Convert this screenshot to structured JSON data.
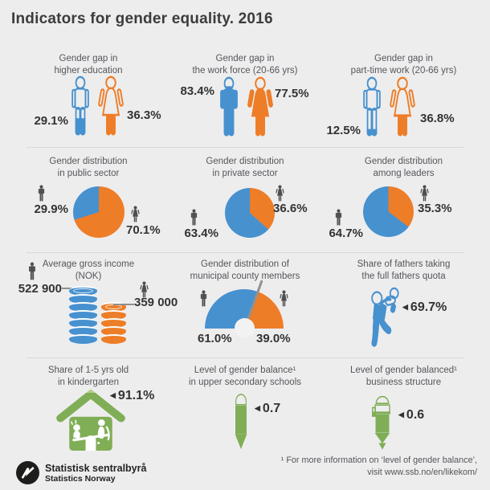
{
  "title": "Indicators for gender equality. 2016",
  "ui": {
    "arrow": "◀"
  },
  "colors": {
    "male_blue": "#4791cf",
    "female_orange": "#ee7d28",
    "green": "#80ae56",
    "green_light": "#b5cc90",
    "icon_gray": "#4d4e50",
    "needle_gray": "#8f9193",
    "background": "#ededee"
  },
  "chart_data": [
    {
      "id": "gender-gap-higher-education",
      "type": "pictogram-fill",
      "title": "Gender gap in\nhigher education",
      "male": {
        "value": 29.1,
        "label": "29.1%"
      },
      "female": {
        "value": 36.3,
        "label": "36.3%"
      }
    },
    {
      "id": "gender-gap-work-force",
      "type": "pictogram-fill",
      "title": "Gender gap in\nthe work force (20-66 yrs)",
      "male": {
        "value": 83.4,
        "label": "83.4%"
      },
      "female": {
        "value": 77.5,
        "label": "77.5%"
      }
    },
    {
      "id": "gender-gap-part-time-work",
      "type": "pictogram-fill",
      "title": "Gender gap in\npart-time work (20-66 yrs)",
      "male": {
        "value": 12.5,
        "label": "12.5%"
      },
      "female": {
        "value": 36.8,
        "label": "36.8%"
      }
    },
    {
      "id": "gender-distribution-public-sector",
      "type": "pie",
      "title": "Gender distribution\nin public sector",
      "male": {
        "value": 29.9,
        "label": "29.9%"
      },
      "female": {
        "value": 70.1,
        "label": "70.1%"
      }
    },
    {
      "id": "gender-distribution-private-sector",
      "type": "pie",
      "title": "Gender distribution\nin private sector",
      "male": {
        "value": 63.4,
        "label": "63.4%"
      },
      "female": {
        "value": 36.6,
        "label": "36.6%"
      }
    },
    {
      "id": "gender-distribution-leaders",
      "type": "pie",
      "title": "Gender distribution\namong leaders",
      "male": {
        "value": 64.7,
        "label": "64.7%"
      },
      "female": {
        "value": 35.3,
        "label": "35.3%"
      }
    },
    {
      "id": "average-gross-income",
      "type": "coin-stacks",
      "title": "Average gross income\n(NOK)",
      "unit": "NOK",
      "male": {
        "value": 522900,
        "label": "522 900",
        "coins": 7
      },
      "female": {
        "value": 359000,
        "label": "359 000",
        "coins": 5
      }
    },
    {
      "id": "municipal-county-members",
      "type": "gauge",
      "title": "Gender distribution of\nmunicipal county members",
      "male": {
        "value": 61.0,
        "label": "61.0%"
      },
      "female": {
        "value": 39.0,
        "label": "39.0%"
      }
    },
    {
      "id": "fathers-quota",
      "type": "pictogram-fill",
      "title": "Share of fathers taking\nthe full fathers quota",
      "value": 69.7,
      "max": 100,
      "label": "69.7%"
    },
    {
      "id": "kindergarten",
      "type": "pictogram-fill",
      "title": "Share of 1-5 yrs old\nin kindergarten",
      "value": 91.1,
      "max": 100,
      "label": "91.1%"
    },
    {
      "id": "gender-balance-schools",
      "type": "pictogram-fill",
      "title": "Level of gender balance¹\nin upper secondary schools",
      "value": 0.7,
      "max": 1,
      "label": "0.7"
    },
    {
      "id": "gender-balance-business",
      "type": "pictogram-fill",
      "title": "Level of gender balanced¹\nbusiness structure",
      "value": 0.6,
      "max": 1,
      "label": "0.6"
    }
  ],
  "footer": {
    "org_name": "Statistisk sentralbyrå",
    "org_name_en": "Statistics Norway",
    "footnote_line1": "¹ For more information on ‘level of gender balance’,",
    "footnote_line2": "visit www.ssb.no/en/likekom/"
  }
}
